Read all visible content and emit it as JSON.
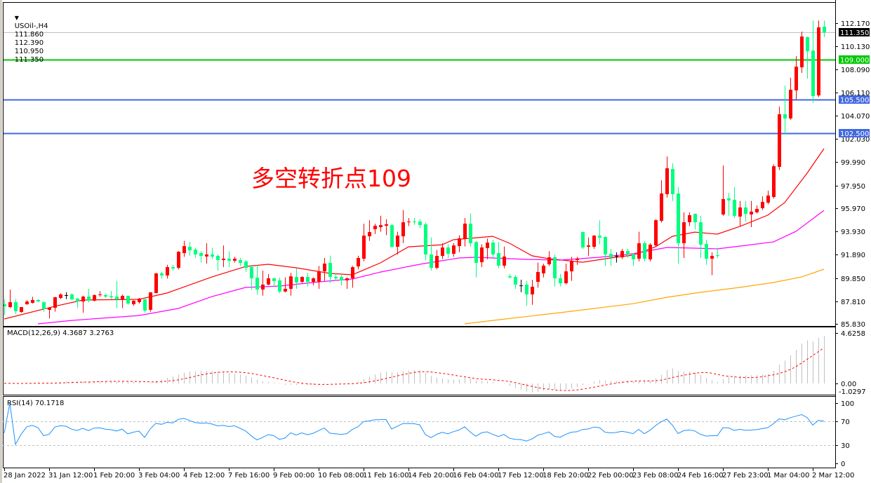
{
  "header": {
    "symbol": "USOil-,H4",
    "open": "111.860",
    "high": "112.390",
    "low": "110.950",
    "close": "111.350"
  },
  "annotation": "多空转折点109",
  "macd_label": "MACD(12,26,9) 4.3687 3.2763",
  "rsi_label": "RSI(14) 70.1718",
  "colors": {
    "up_candle": "#ff0000",
    "down_candle": "#00ff7f",
    "doji": "#000000",
    "ma_fast": "#ff0000",
    "ma_mid": "#ff00ff",
    "ma_slow": "#ffa500",
    "macd_histogram": "#c0c0c0",
    "macd_signal": "#ff0000",
    "rsi_line": "#1e90ff",
    "level_green": "#00c800",
    "level_blue": "#4169e1",
    "bid_line": "#c0c0c0"
  },
  "chart_data": {
    "type": "candlestick",
    "price_axis_ticks": [
      "112.170",
      "110.130",
      "108.090",
      "106.110",
      "104.070",
      "102.030",
      "99.990",
      "97.950",
      "95.970",
      "93.930",
      "91.890",
      "89.850",
      "87.810",
      "85.830"
    ],
    "ylim": [
      85.83,
      112.17
    ],
    "time_axis_ticks": [
      "28 Jan 2022",
      "31 Jan 12:00",
      "1 Feb 20:00",
      "3 Feb 04:00",
      "4 Feb 12:00",
      "7 Feb 16:00",
      "9 Feb 00:00",
      "10 Feb 08:00",
      "11 Feb 16:00",
      "14 Feb 20:00",
      "16 Feb 04:00",
      "17 Feb 12:00",
      "18 Feb 20:00",
      "22 Feb 00:00",
      "23 Feb 08:00",
      "24 Feb 16:00",
      "27 Feb 23:00",
      "1 Mar 04:00",
      "2 Mar 12:00"
    ],
    "time_tick_every_bars": 8,
    "ohlc_fields": [
      "open",
      "high",
      "low",
      "close"
    ],
    "candles": [
      [
        87.55,
        88.0,
        86.6,
        87.37
      ],
      [
        87.3,
        88.84,
        87.2,
        87.73
      ],
      [
        87.73,
        88.0,
        86.7,
        86.93
      ],
      [
        86.87,
        87.3,
        86.8,
        87.3
      ],
      [
        87.55,
        87.9,
        87.5,
        87.79
      ],
      [
        87.67,
        88.2,
        87.6,
        87.92
      ],
      [
        87.92,
        88.0,
        87.7,
        87.79
      ],
      [
        87.73,
        87.8,
        86.9,
        87.12
      ],
      [
        87.06,
        87.3,
        86.3,
        87.24
      ],
      [
        87.24,
        88.2,
        86.9,
        88.16
      ],
      [
        88.1,
        88.5,
        88.0,
        88.41
      ],
      [
        88.35,
        88.6,
        88.0,
        88.35
      ],
      [
        88.41,
        88.5,
        87.9,
        87.98
      ],
      [
        88.04,
        88.1,
        87.2,
        87.79
      ],
      [
        87.79,
        88.3,
        86.8,
        88.22
      ],
      [
        88.22,
        88.9,
        87.7,
        87.86
      ],
      [
        87.86,
        88.4,
        87.8,
        88.35
      ],
      [
        88.35,
        88.7,
        88.2,
        88.41
      ],
      [
        88.35,
        88.5,
        88.1,
        88.22
      ],
      [
        88.25,
        88.7,
        88.0,
        88.15
      ],
      [
        88.22,
        89.6,
        87.2,
        87.98
      ],
      [
        87.98,
        88.4,
        87.2,
        88.28
      ],
      [
        88.28,
        88.3,
        87.5,
        87.61
      ],
      [
        87.55,
        87.9,
        87.4,
        87.86
      ],
      [
        87.73,
        88.1,
        87.6,
        88.04
      ],
      [
        87.98,
        88.0,
        86.8,
        86.99
      ],
      [
        87.06,
        88.6,
        86.9,
        88.59
      ],
      [
        88.53,
        90.3,
        88.5,
        90.25
      ],
      [
        90.25,
        90.4,
        89.8,
        90.07
      ],
      [
        90.07,
        91.0,
        89.8,
        90.8
      ],
      [
        90.8,
        91.0,
        90.5,
        90.68
      ],
      [
        90.74,
        92.2,
        90.6,
        92.15
      ],
      [
        92.03,
        93.1,
        91.7,
        92.64
      ],
      [
        92.58,
        93.0,
        91.8,
        92.27
      ],
      [
        92.33,
        92.5,
        91.6,
        91.91
      ],
      [
        92.03,
        92.2,
        91.2,
        91.78
      ],
      [
        91.73,
        92.9,
        91.1,
        91.91
      ],
      [
        91.91,
        92.5,
        91.5,
        91.72
      ],
      [
        91.78,
        91.9,
        90.5,
        91.42
      ],
      [
        91.42,
        92.7,
        90.8,
        91.54
      ],
      [
        91.54,
        92.2,
        90.8,
        91.36
      ],
      [
        91.36,
        91.7,
        91.2,
        91.54
      ],
      [
        91.42,
        91.6,
        90.9,
        91.17
      ],
      [
        91.3,
        91.4,
        90.4,
        90.74
      ],
      [
        90.8,
        91.0,
        88.8,
        89.82
      ],
      [
        89.88,
        91.0,
        88.4,
        88.84
      ],
      [
        88.84,
        90.5,
        88.3,
        89.27
      ],
      [
        89.27,
        90.2,
        89.2,
        89.82
      ],
      [
        89.82,
        89.9,
        89.1,
        89.58
      ],
      [
        89.64,
        89.9,
        88.5,
        88.66
      ],
      [
        88.66,
        89.9,
        88.6,
        88.9
      ],
      [
        88.9,
        90.3,
        88.3,
        89.99
      ],
      [
        89.94,
        90.7,
        88.9,
        89.45
      ],
      [
        89.51,
        90.0,
        89.4,
        89.94
      ],
      [
        89.94,
        90.3,
        89.1,
        89.51
      ],
      [
        89.51,
        89.9,
        89.2,
        89.82
      ],
      [
        89.51,
        90.9,
        88.9,
        90.43
      ],
      [
        90.43,
        91.6,
        89.6,
        91.11
      ],
      [
        91.17,
        91.8,
        89.4,
        89.94
      ],
      [
        89.94,
        90.3,
        89.6,
        89.82
      ],
      [
        89.94,
        90.1,
        89.2,
        89.64
      ],
      [
        89.64,
        89.9,
        88.9,
        89.82
      ],
      [
        89.82,
        90.9,
        89.0,
        90.8
      ],
      [
        90.86,
        91.8,
        90.6,
        91.6
      ],
      [
        91.54,
        94.6,
        91.3,
        93.56
      ],
      [
        93.5,
        94.9,
        93.1,
        93.87
      ],
      [
        94.12,
        94.6,
        93.7,
        94.42
      ],
      [
        94.3,
        95.3,
        93.9,
        94.48
      ],
      [
        94.42,
        95.0,
        93.6,
        94.55
      ],
      [
        94.48,
        94.6,
        92.5,
        92.58
      ],
      [
        92.58,
        93.9,
        91.9,
        93.56
      ],
      [
        93.5,
        95.8,
        92.9,
        94.73
      ],
      [
        94.73,
        95.1,
        94.4,
        94.79
      ],
      [
        94.79,
        95.1,
        94.5,
        94.73
      ],
      [
        94.79,
        95.0,
        94.2,
        94.48
      ],
      [
        94.55,
        94.7,
        91.4,
        91.91
      ],
      [
        91.91,
        93.4,
        90.5,
        90.74
      ],
      [
        90.74,
        92.3,
        90.6,
        91.78
      ],
      [
        91.78,
        92.9,
        91.5,
        92.52
      ],
      [
        92.52,
        92.8,
        91.6,
        91.97
      ],
      [
        91.97,
        92.9,
        91.7,
        92.7
      ],
      [
        92.64,
        93.6,
        92.1,
        93.32
      ],
      [
        93.26,
        95.1,
        92.6,
        94.61
      ],
      [
        94.61,
        95.5,
        92.6,
        92.89
      ],
      [
        92.99,
        93.1,
        89.9,
        91.17
      ],
      [
        91.23,
        92.8,
        90.8,
        92.52
      ],
      [
        92.46,
        93.3,
        91.5,
        92.95
      ],
      [
        92.95,
        93.2,
        91.6,
        91.91
      ],
      [
        92.03,
        93.0,
        90.7,
        90.93
      ],
      [
        90.93,
        92.6,
        90.7,
        91.73
      ],
      [
        90.0,
        90.2,
        89.8,
        89.9
      ],
      [
        89.94,
        90.1,
        88.9,
        89.27
      ],
      [
        89.2,
        89.7,
        88.6,
        89.2
      ],
      [
        89.27,
        89.6,
        87.4,
        88.41
      ],
      [
        88.41,
        89.7,
        87.5,
        89.08
      ],
      [
        89.51,
        91.2,
        89.0,
        90.37
      ],
      [
        90.25,
        91.1,
        89.9,
        90.93
      ],
      [
        91.05,
        92.2,
        90.9,
        91.66
      ],
      [
        91.66,
        91.9,
        89.1,
        89.82
      ],
      [
        89.82,
        90.2,
        89.1,
        89.39
      ],
      [
        89.39,
        91.1,
        89.3,
        90.43
      ],
      [
        90.43,
        91.7,
        89.6,
        91.36
      ],
      [
        91.42,
        91.7,
        91.0,
        91.54
      ],
      [
        93.87,
        93.9,
        92.4,
        92.52
      ],
      [
        92.58,
        93.4,
        91.8,
        92.7
      ],
      [
        92.58,
        93.6,
        92.4,
        93.56
      ],
      [
        93.56,
        94.9,
        92.8,
        93.38
      ],
      [
        93.44,
        93.5,
        90.9,
        91.91
      ],
      [
        91.97,
        92.4,
        90.9,
        91.66
      ],
      [
        91.79,
        92.1,
        91.2,
        91.79
      ],
      [
        91.66,
        92.4,
        91.5,
        92.21
      ],
      [
        92.21,
        92.4,
        91.6,
        91.91
      ],
      [
        91.91,
        92.0,
        90.9,
        91.48
      ],
      [
        91.54,
        93.9,
        91.3,
        92.89
      ],
      [
        92.89,
        93.1,
        91.3,
        91.54
      ],
      [
        91.48,
        92.9,
        91.3,
        92.77
      ],
      [
        92.7,
        95.0,
        92.6,
        94.91
      ],
      [
        94.85,
        98.4,
        94.7,
        97.25
      ],
      [
        97.19,
        100.5,
        96.9,
        99.46
      ],
      [
        99.4,
        99.9,
        96.6,
        97.19
      ],
      [
        97.25,
        97.8,
        91.1,
        92.89
      ],
      [
        92.89,
        95.6,
        91.6,
        94.73
      ],
      [
        94.73,
        95.6,
        94.4,
        95.35
      ],
      [
        95.47,
        95.5,
        94.1,
        94.73
      ],
      [
        94.73,
        95.3,
        91.6,
        92.77
      ],
      [
        92.83,
        93.2,
        91.0,
        91.54
      ],
      [
        91.54,
        92.1,
        90.1,
        91.78
      ],
      [
        91.85,
        92.5,
        91.6,
        91.78
      ],
      [
        95.41,
        99.7,
        95.3,
        96.76
      ],
      [
        96.82,
        97.3,
        95.3,
        96.64
      ],
      [
        96.7,
        97.8,
        95.1,
        95.29
      ],
      [
        95.23,
        96.6,
        94.4,
        96.03
      ],
      [
        96.03,
        96.6,
        94.8,
        95.47
      ],
      [
        95.41,
        96.6,
        94.3,
        95.66
      ],
      [
        95.6,
        96.2,
        95.5,
        95.9
      ],
      [
        95.96,
        97.0,
        95.8,
        96.51
      ],
      [
        96.45,
        97.5,
        96.3,
        97.07
      ],
      [
        96.94,
        99.8,
        96.8,
        99.64
      ],
      [
        99.58,
        104.86,
        99.3,
        104.19
      ],
      [
        104.19,
        106.7,
        102.4,
        103.82
      ],
      [
        103.82,
        107.38,
        103.7,
        106.34
      ],
      [
        106.28,
        109.28,
        105.5,
        108.36
      ],
      [
        108.3,
        111.43,
        107.81,
        111.0
      ],
      [
        110.94,
        111.0,
        107.32,
        109.71
      ],
      [
        109.77,
        112.4,
        105.17,
        105.78
      ],
      [
        105.84,
        112.4,
        105.7,
        111.8
      ],
      [
        111.86,
        112.39,
        110.95,
        111.35
      ]
    ],
    "moving_averages": [
      {
        "color_key": "ma_fast",
        "points": [
          [
            0,
            86.26
          ],
          [
            9,
            87.37
          ],
          [
            14,
            87.92
          ],
          [
            24,
            87.98
          ],
          [
            29,
            88.53
          ],
          [
            37,
            89.94
          ],
          [
            43,
            90.86
          ],
          [
            47,
            91.05
          ],
          [
            52,
            90.74
          ],
          [
            58,
            90.25
          ],
          [
            62,
            90.13
          ],
          [
            67,
            91.17
          ],
          [
            72,
            92.58
          ],
          [
            78,
            92.76
          ],
          [
            80,
            93.2
          ],
          [
            87,
            93.5
          ],
          [
            90,
            92.89
          ],
          [
            94,
            91.79
          ],
          [
            97,
            91.54
          ],
          [
            103,
            91.23
          ],
          [
            108,
            91.6
          ],
          [
            112,
            91.85
          ],
          [
            116,
            92.58
          ],
          [
            119,
            93.5
          ],
          [
            123,
            93.87
          ],
          [
            127,
            93.69
          ],
          [
            131,
            94.36
          ],
          [
            136,
            95.35
          ],
          [
            139,
            96.45
          ],
          [
            143,
            99.03
          ],
          [
            146,
            101.18
          ]
        ]
      },
      {
        "color_key": "ma_mid",
        "points": [
          [
            6,
            85.83
          ],
          [
            12,
            86.13
          ],
          [
            24,
            86.56
          ],
          [
            31,
            87.18
          ],
          [
            37,
            88.22
          ],
          [
            43,
            89.02
          ],
          [
            49,
            89.14
          ],
          [
            56,
            89.51
          ],
          [
            62,
            89.76
          ],
          [
            67,
            90.37
          ],
          [
            74,
            91.05
          ],
          [
            81,
            91.6
          ],
          [
            84,
            91.66
          ],
          [
            93,
            91.48
          ],
          [
            99,
            91.42
          ],
          [
            106,
            91.66
          ],
          [
            112,
            91.97
          ],
          [
            118,
            92.52
          ],
          [
            123,
            92.46
          ],
          [
            127,
            92.4
          ],
          [
            132,
            92.7
          ],
          [
            137,
            93.01
          ],
          [
            141,
            93.93
          ],
          [
            146,
            95.77
          ]
        ]
      },
      {
        "color_key": "ma_slow",
        "points": [
          [
            82,
            85.83
          ],
          [
            87,
            86.13
          ],
          [
            99,
            86.81
          ],
          [
            112,
            87.6
          ],
          [
            118,
            88.16
          ],
          [
            124,
            88.59
          ],
          [
            131,
            89.02
          ],
          [
            137,
            89.45
          ],
          [
            142,
            89.94
          ],
          [
            146,
            90.62
          ]
        ]
      }
    ],
    "horizontal_lines": [
      {
        "price": 111.35,
        "label": "111.350",
        "color_key": "bid_line",
        "label_bg": "#000000",
        "label_fg": "#ffffff"
      },
      {
        "price": 109.0,
        "label": "109.000",
        "color_key": "level_green",
        "label_bg": "#00c800",
        "label_fg": "#ffffff"
      },
      {
        "price": 105.5,
        "label": "105.500",
        "color_key": "level_blue",
        "label_bg": "#4169e1",
        "label_fg": "#ffffff"
      },
      {
        "price": 102.5,
        "label": "102.500",
        "color_key": "level_blue",
        "label_bg": "#4169e1",
        "label_fg": "#ffffff"
      }
    ],
    "macd": {
      "params": [
        12,
        26,
        9
      ],
      "value": 4.3687,
      "signal": 3.2763,
      "axis_ticks": [
        "4.6258",
        "0.00",
        "-1.0297"
      ],
      "ylim": [
        -1.0297,
        4.6258
      ]
    },
    "rsi": {
      "period": 14,
      "value": 70.1718,
      "levels": [
        70,
        30
      ],
      "axis_ticks": [
        "100",
        "70",
        "30",
        "0"
      ],
      "ylim": [
        0,
        100
      ]
    }
  }
}
